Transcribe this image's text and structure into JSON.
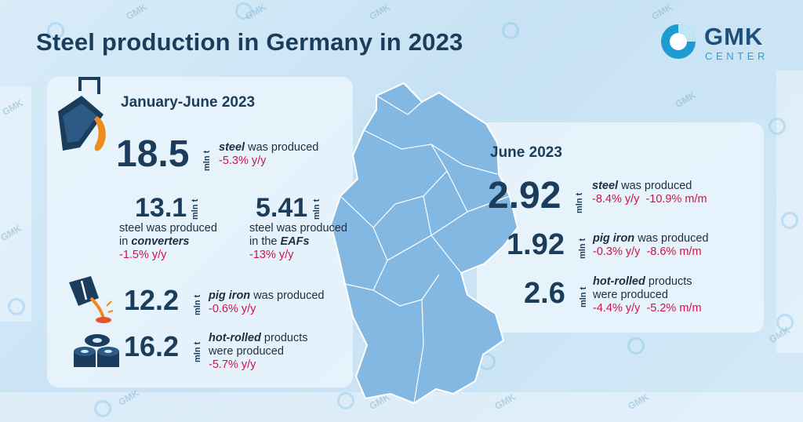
{
  "title": "Steel production in Germany in 2023",
  "logo": {
    "name": "GMK",
    "sub": "CENTER"
  },
  "watermark": "GMK",
  "colors": {
    "accent": "#1b3d5b",
    "negative": "#d1124a",
    "map": "#7fb7e3"
  },
  "half_year": {
    "period": "January-June 2023",
    "steel": {
      "value": "18.5",
      "unit": "mln t",
      "label_em": "steel",
      "label_rest": " was produced",
      "change": "-5.3% y/y"
    },
    "converters": {
      "value": "13.1",
      "unit": "mln t",
      "line1": "steel was produced",
      "line2_pre": "in ",
      "line2_em": "converters",
      "change": "-1.5% y/y"
    },
    "eafs": {
      "value": "5.41",
      "unit": "mln t",
      "line1": "steel was produced",
      "line2_pre": "in the ",
      "line2_em": "EAFs",
      "change": "-13% y/y"
    },
    "pig_iron": {
      "value": "12.2",
      "unit": "mln t",
      "label_em": "pig iron",
      "label_rest": " was produced",
      "change": "-0.6% y/y"
    },
    "hot_rolled": {
      "value": "16.2",
      "unit": "mln t",
      "label_em": "hot-rolled",
      "label_rest": " products",
      "line2": "were produced",
      "change": "-5.7% y/y"
    }
  },
  "june": {
    "period": "June 2023",
    "steel": {
      "value": "2.92",
      "unit": "mln t",
      "label_em": "steel",
      "label_rest": " was produced",
      "change_yy": "-8.4% y/y",
      "change_mm": "-10.9% m/m"
    },
    "pig_iron": {
      "value": "1.92",
      "unit": "mln t",
      "label_em": "pig iron",
      "label_rest": " was produced",
      "change_yy": "-0.3% y/y",
      "change_mm": "-8.6% m/m"
    },
    "hot_rolled": {
      "value": "2.6",
      "unit": "mln t",
      "label_em": "hot-rolled",
      "label_rest": " products",
      "line2": "were produced",
      "change_yy": "-4.4% y/y",
      "change_mm": "-5.2% m/m"
    }
  }
}
